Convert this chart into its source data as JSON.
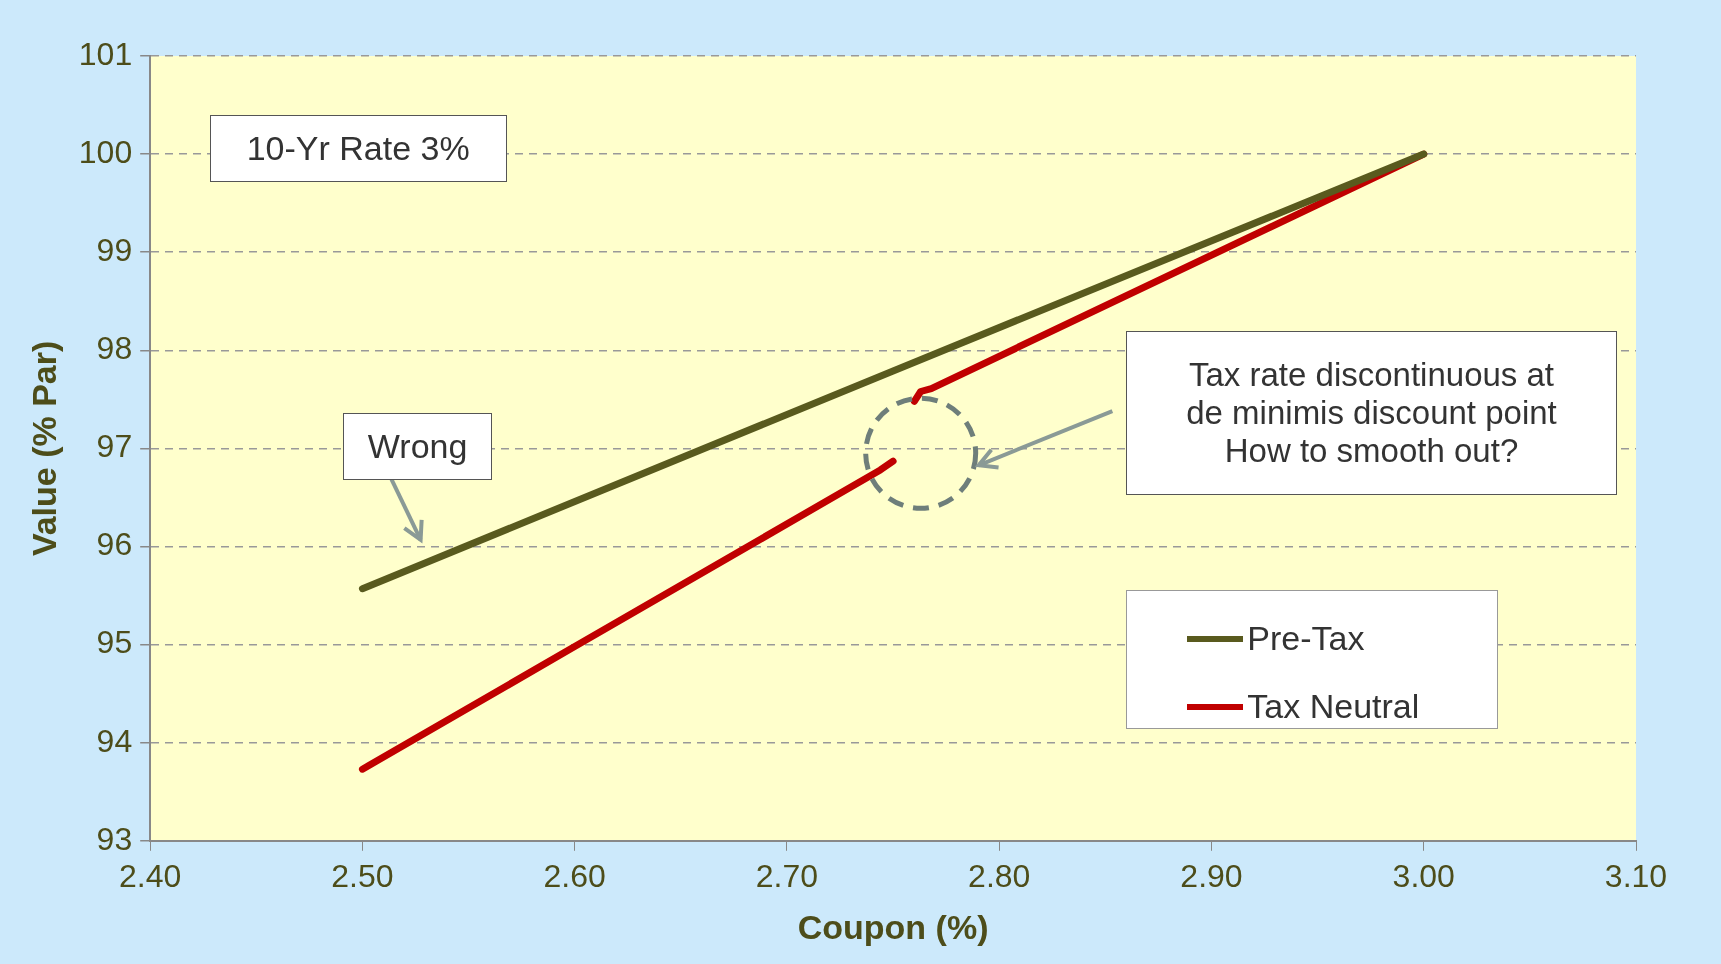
{
  "chart_data": {
    "type": "line",
    "xlabel": "Coupon (%)",
    "ylabel": "Value (% Par)",
    "xlim": [
      2.4,
      3.1
    ],
    "xticks": [
      {
        "value": 2.4,
        "label": "2.40"
      },
      {
        "value": 2.5,
        "label": "2.50"
      },
      {
        "value": 2.6,
        "label": "2.60"
      },
      {
        "value": 2.7,
        "label": "2.70"
      },
      {
        "value": 2.8,
        "label": "2.80"
      },
      {
        "value": 2.9,
        "label": "2.90"
      },
      {
        "value": 3.0,
        "label": "3.00"
      },
      {
        "value": 3.1,
        "label": "3.10"
      }
    ],
    "ylim": [
      93,
      101
    ],
    "yticks": [
      93,
      94,
      95,
      96,
      97,
      98,
      99,
      100,
      101
    ],
    "grid": "y",
    "legend": "bottom right",
    "marker": "none",
    "line_style": "solid",
    "series": [
      {
        "name": "Pre-Tax",
        "color": "#595a1e",
        "x": [
          2.5,
          2.75,
          3.0
        ],
        "values": [
          95.57,
          97.79,
          100
        ]
      },
      {
        "name": "Tax Neutral",
        "color": "#c00000",
        "x": [
          2.5,
          2.6,
          2.744,
          2.75,
          2.755,
          2.76,
          2.763,
          2.768,
          3.0
        ],
        "values": [
          93.73,
          94.98,
          96.78,
          96.87,
          null,
          97.48,
          97.58,
          97.61,
          100
        ]
      }
    ],
    "annotations": [
      "10-Yr Rate 3%",
      "Wrong",
      "Tax rate discontinuous at\nde minimis discount point\nHow to smooth out?"
    ]
  }
}
